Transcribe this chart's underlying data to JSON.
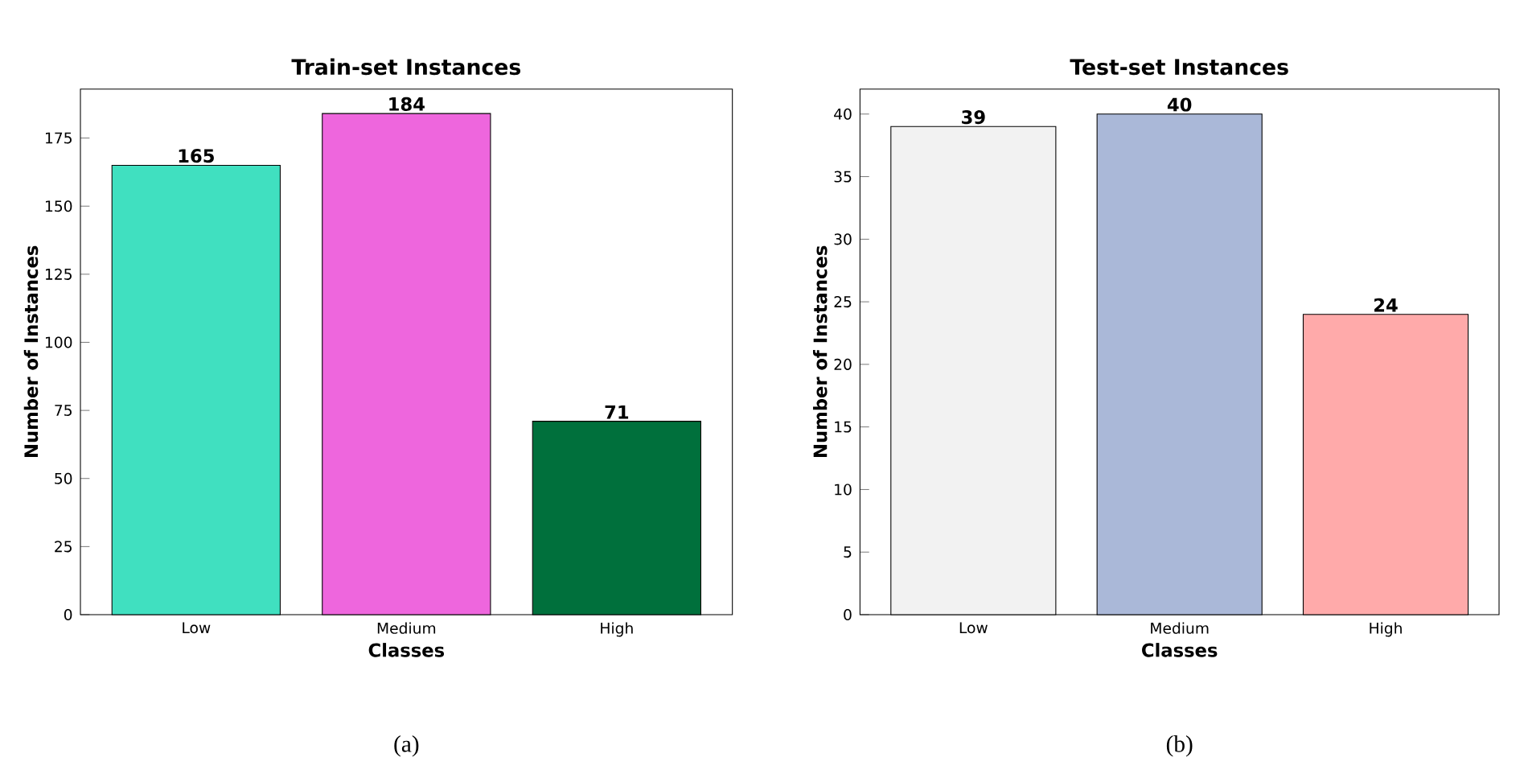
{
  "chart_data": [
    {
      "type": "bar",
      "title": "Train-set Instances",
      "xlabel": "Classes",
      "ylabel": "Number of Instances",
      "categories": [
        "Low",
        "Medium",
        "High"
      ],
      "values": [
        165,
        184,
        71
      ],
      "colors": [
        "#40e0c0",
        "#ee66dd",
        "#00703c"
      ],
      "ylim": [
        0,
        193
      ],
      "yticks": [
        0,
        25,
        50,
        75,
        100,
        125,
        150,
        175
      ],
      "data_labels": true,
      "annotations": [
        "(a)"
      ]
    },
    {
      "type": "bar",
      "title": "Test-set Instances",
      "xlabel": "Classes",
      "ylabel": "Number of Instances",
      "categories": [
        "Low",
        "Medium",
        "High"
      ],
      "values": [
        39,
        40,
        24
      ],
      "colors": [
        "#f2f2f2",
        "#aab8d8",
        "#ffaaaa"
      ],
      "ylim": [
        0,
        42
      ],
      "yticks": [
        0,
        5,
        10,
        15,
        20,
        25,
        30,
        35,
        40
      ],
      "data_labels": true,
      "annotations": [
        "(b)"
      ]
    }
  ]
}
